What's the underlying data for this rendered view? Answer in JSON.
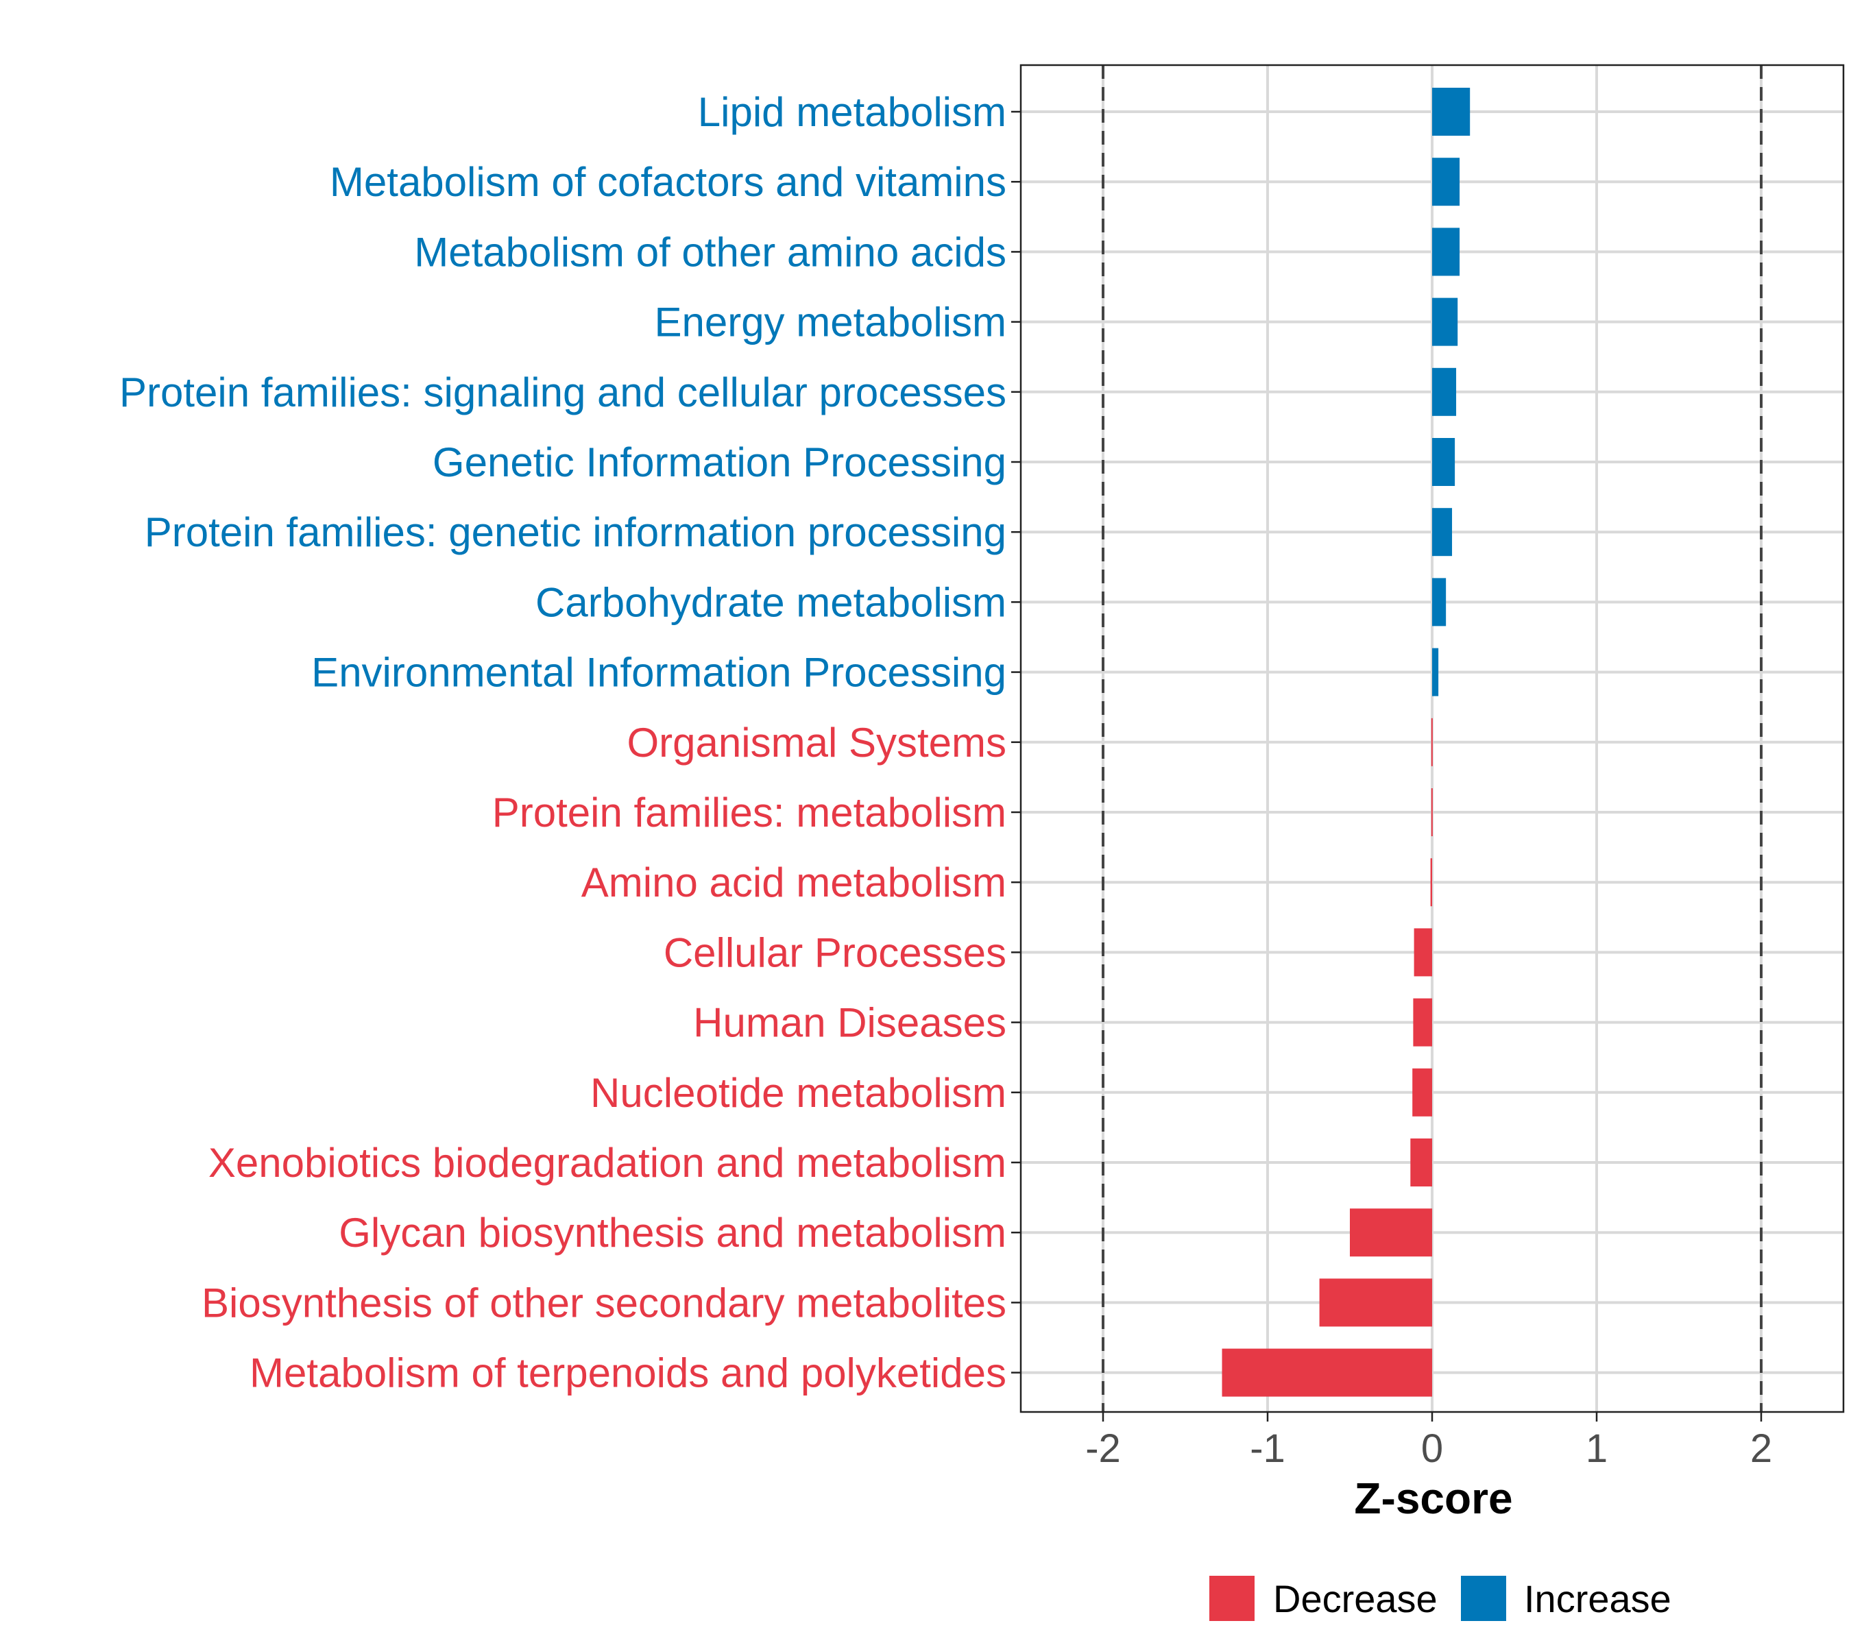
{
  "chart_data": {
    "type": "bar",
    "orientation": "horizontal",
    "title": "",
    "xlabel": "Z-score",
    "ylabel": "",
    "xlim": [
      -2.5,
      2.5
    ],
    "xticks": [
      -2,
      -1,
      0,
      1,
      2
    ],
    "xtick_labels": [
      "-2",
      "-1",
      "0",
      "1",
      "2"
    ],
    "reference_lines": [
      -2,
      2
    ],
    "grid": true,
    "legend_position": "bottom",
    "legend": [
      {
        "label": "Decrease",
        "color": "#E63946"
      },
      {
        "label": "Increase",
        "color": "#0077B8"
      }
    ],
    "categories": [
      "Lipid metabolism",
      "Metabolism of cofactors and vitamins",
      "Metabolism of other amino acids",
      "Energy metabolism",
      "Protein families: signaling and cellular processes",
      "Genetic Information Processing",
      "Protein families: genetic information processing",
      "Carbohydrate metabolism",
      "Environmental Information Processing",
      "Organismal Systems",
      "Protein families: metabolism",
      "Amino acid metabolism",
      "Cellular Processes",
      "Human Diseases",
      "Nucleotide metabolism",
      "Xenobiotics biodegradation and metabolism",
      "Glycan biosynthesis and metabolism",
      "Biosynthesis of other secondary metabolites",
      "Metabolism of terpenoids and polyketides"
    ],
    "values": [
      0.23,
      0.167,
      0.167,
      0.155,
      0.146,
      0.138,
      0.121,
      0.084,
      0.038,
      -0.005,
      -0.005,
      -0.01,
      -0.11,
      -0.115,
      -0.12,
      -0.132,
      -0.5,
      -0.685,
      -1.277
    ],
    "groups": [
      "Increase",
      "Increase",
      "Increase",
      "Increase",
      "Increase",
      "Increase",
      "Increase",
      "Increase",
      "Increase",
      "Decrease",
      "Decrease",
      "Decrease",
      "Decrease",
      "Decrease",
      "Decrease",
      "Decrease",
      "Decrease",
      "Decrease",
      "Decrease"
    ]
  }
}
